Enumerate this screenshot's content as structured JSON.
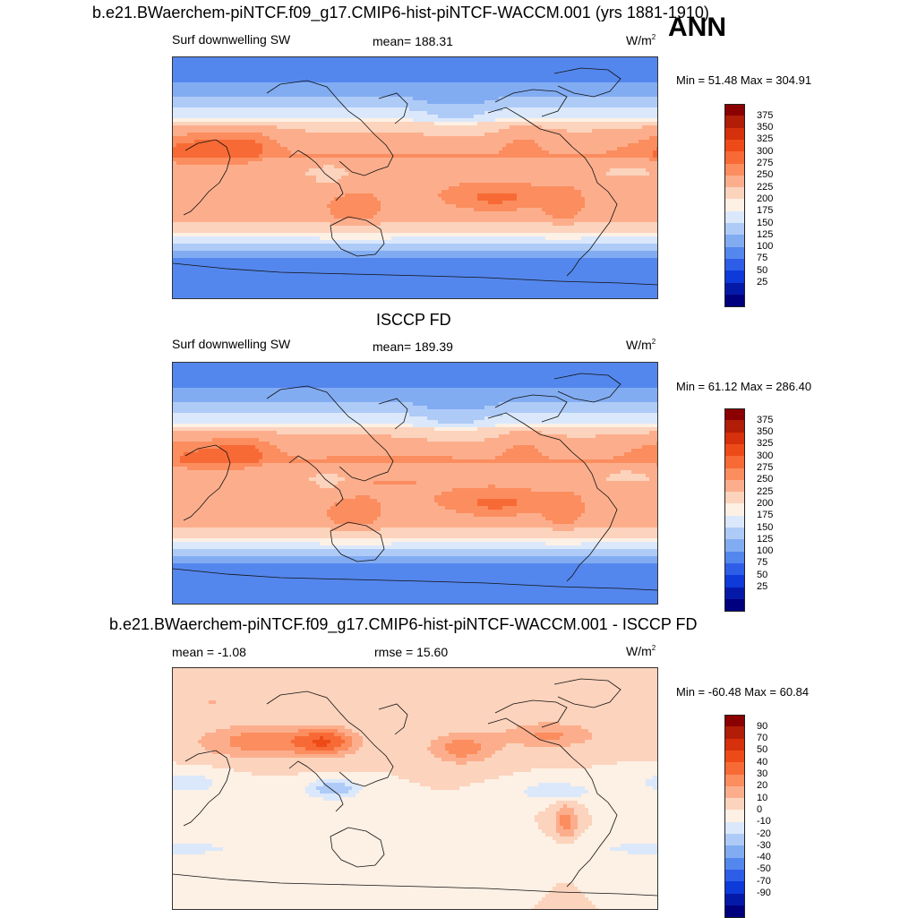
{
  "header": {
    "title": "b.e21.BWaerchem-piNTCF.f09_g17.CMIP6-hist-piNTCF-WACCM.001 (yrs 1881-1910)",
    "season": "ANN"
  },
  "panels": [
    {
      "id": "model",
      "subtitle": "",
      "variable": "Surf downwelling SW",
      "stat_text": "mean= 188.31",
      "units": "W/m",
      "units_exp": "2",
      "minmax_text": "Min =  51.48 Max = 304.91"
    },
    {
      "id": "obs",
      "subtitle": "ISCCP FD",
      "variable": "Surf downwelling SW",
      "stat_text": "mean= 189.39",
      "units": "W/m",
      "units_exp": "2",
      "minmax_text": "Min =  61.12 Max = 286.40"
    },
    {
      "id": "diff",
      "subtitle": "b.e21.BWaerchem-piNTCF.f09_g17.CMIP6-hist-piNTCF-WACCM.001 - ISCCP FD",
      "variable": "mean =  -1.08",
      "stat_text": "rmse =  15.60",
      "units": "W/m",
      "units_exp": "2",
      "minmax_text": "Min = -60.48 Max =  60.84"
    }
  ],
  "chart_data": [
    {
      "type": "heatmap",
      "title": "Surf downwelling SW",
      "mean": 188.31,
      "min": 51.48,
      "max": 304.91,
      "colorbar_levels": [
        375,
        350,
        325,
        300,
        275,
        250,
        225,
        200,
        175,
        150,
        125,
        100,
        75,
        50,
        25
      ],
      "colorbar_colors": [
        "#8b0000",
        "#b11d06",
        "#d6300c",
        "#ee4a18",
        "#f86a35",
        "#fb8d5f",
        "#fcae8c",
        "#fcd3bd",
        "#fdf0e4",
        "#dbe8fb",
        "#aecbf7",
        "#82acf2",
        "#5487ed",
        "#2e5ee8",
        "#0d3ad9",
        "#0519a8",
        "#00007f"
      ]
    },
    {
      "type": "heatmap",
      "title": "ISCCP FD",
      "mean": 189.39,
      "min": 61.12,
      "max": 286.4,
      "colorbar_levels": [
        375,
        350,
        325,
        300,
        275,
        250,
        225,
        200,
        175,
        150,
        125,
        100,
        75,
        50,
        25
      ],
      "colorbar_colors": [
        "#8b0000",
        "#b11d06",
        "#d6300c",
        "#ee4a18",
        "#f86a35",
        "#fb8d5f",
        "#fcae8c",
        "#fcd3bd",
        "#fdf0e4",
        "#dbe8fb",
        "#aecbf7",
        "#82acf2",
        "#5487ed",
        "#2e5ee8",
        "#0d3ad9",
        "#0519a8",
        "#00007f"
      ]
    },
    {
      "type": "heatmap",
      "title": "b.e21.BWaerchem-piNTCF.f09_g17.CMIP6-hist-piNTCF-WACCM.001 - ISCCP FD",
      "mean": -1.08,
      "rmse": 15.6,
      "min": -60.48,
      "max": 60.84,
      "colorbar_levels": [
        90,
        70,
        50,
        40,
        30,
        20,
        10,
        0,
        -10,
        -20,
        -30,
        -40,
        -50,
        -70,
        -90
      ],
      "colorbar_colors": [
        "#8b0000",
        "#b11d06",
        "#d6300c",
        "#ee4a18",
        "#f86a35",
        "#fb8d5f",
        "#fcae8c",
        "#fcd3bd",
        "#fdf0e4",
        "#dbe8fb",
        "#aecbf7",
        "#82acf2",
        "#5487ed",
        "#2e5ee8",
        "#0d3ad9",
        "#0519a8",
        "#00007f"
      ]
    }
  ]
}
